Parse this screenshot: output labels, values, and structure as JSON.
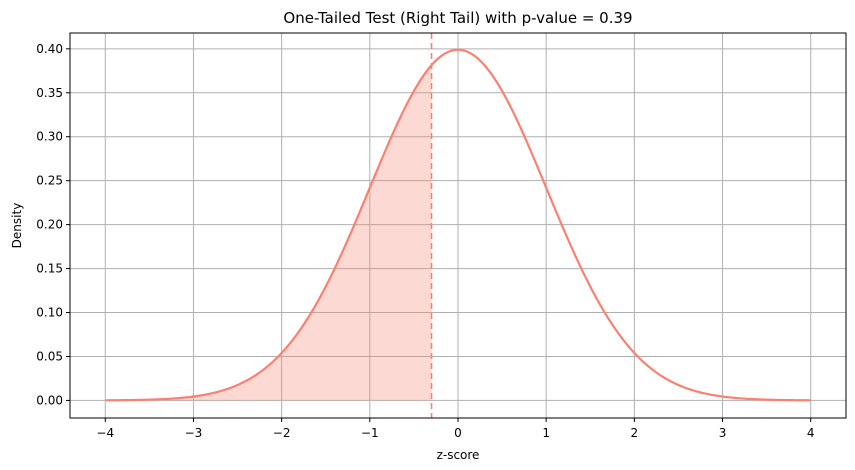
{
  "chart_data": {
    "type": "line",
    "title": "One-Tailed Test (Right Tail) with p-value = 0.39",
    "xlabel": "z-score",
    "ylabel": "Density",
    "xlim": [
      -4.4,
      4.4
    ],
    "ylim": [
      -0.02,
      0.418
    ],
    "x_ticks": [
      -4,
      -3,
      -2,
      -1,
      0,
      1,
      2,
      3,
      4
    ],
    "x_tick_labels": [
      "−4",
      "−3",
      "−2",
      "−1",
      "0",
      "1",
      "2",
      "3",
      "4"
    ],
    "y_ticks": [
      0.0,
      0.05,
      0.1,
      0.15,
      0.2,
      0.25,
      0.3,
      0.35,
      0.4
    ],
    "y_tick_labels": [
      "0.00",
      "0.05",
      "0.10",
      "0.15",
      "0.20",
      "0.25",
      "0.30",
      "0.35",
      "0.40"
    ],
    "grid": true,
    "series": [
      {
        "x": [
          -4.0,
          -3.5,
          -3.0,
          -2.5,
          -2.0,
          -1.5,
          -1.0,
          -0.5,
          0.0,
          0.5,
          1.0,
          1.5,
          2.0,
          2.5,
          3.0,
          3.5,
          4.0
        ],
        "y": [
          0.0001,
          0.0009,
          0.0044,
          0.0175,
          0.054,
          0.1295,
          0.242,
          0.3521,
          0.3989,
          0.3521,
          0.242,
          0.1295,
          0.054,
          0.0175,
          0.0044,
          0.0009,
          0.0001
        ]
      }
    ],
    "critical_value": -0.3,
    "shaded_region": [
      -4.0,
      -0.3
    ],
    "colors": {
      "curve": "#fa8072",
      "fill": "#fa8072",
      "critical_line": "#fa8072",
      "grid": "#b0b0b0",
      "axes": "#000000"
    }
  }
}
